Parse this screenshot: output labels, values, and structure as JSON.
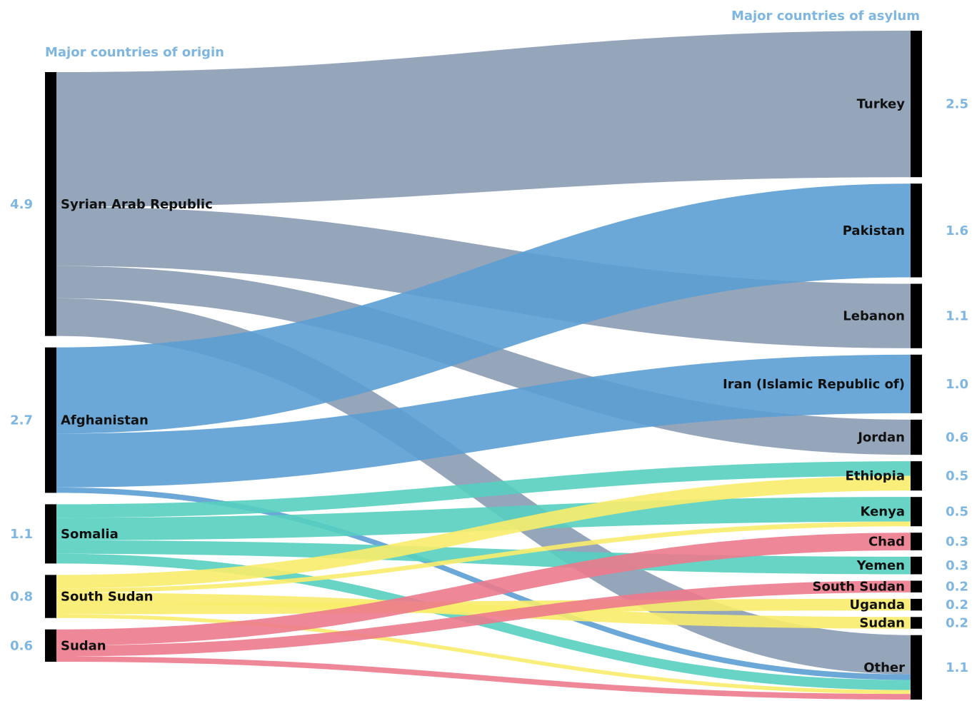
{
  "chart_data": {
    "type": "sankey",
    "left_header": "Major countries of origin",
    "right_header": "Major countries of asylum",
    "colors": {
      "Syrian Arab Republic": "#8a9bb3",
      "Afghanistan": "#5b9fd4",
      "Somalia": "#56cfc0",
      "South Sudan": "#f8ec6a",
      "Sudan": "#ec7a8c",
      "bar": "#000000",
      "header": "#7fb6e0"
    },
    "origins": [
      {
        "name": "Syrian Arab Republic",
        "value": 4.9,
        "value_label": "4.9"
      },
      {
        "name": "Afghanistan",
        "value": 2.7,
        "value_label": "2.7"
      },
      {
        "name": "Somalia",
        "value": 1.1,
        "value_label": "1.1"
      },
      {
        "name": "South Sudan",
        "value": 0.8,
        "value_label": "0.8"
      },
      {
        "name": "Sudan",
        "value": 0.6,
        "value_label": "0.6"
      }
    ],
    "asylums": [
      {
        "name": "Turkey",
        "value": 2.5,
        "value_label": "2.5"
      },
      {
        "name": "Pakistan",
        "value": 1.6,
        "value_label": "1.6"
      },
      {
        "name": "Lebanon",
        "value": 1.1,
        "value_label": "1.1"
      },
      {
        "name": "Iran (Islamic Republic of)",
        "value": 1.0,
        "value_label": "1.0"
      },
      {
        "name": "Jordan",
        "value": 0.6,
        "value_label": "0.6"
      },
      {
        "name": "Ethiopia",
        "value": 0.5,
        "value_label": "0.5"
      },
      {
        "name": "Kenya",
        "value": 0.5,
        "value_label": "0.5"
      },
      {
        "name": "Chad",
        "value": 0.3,
        "value_label": "0.3"
      },
      {
        "name": "Yemen",
        "value": 0.3,
        "value_label": "0.3"
      },
      {
        "name": "South Sudan",
        "value": 0.2,
        "value_label": "0.2"
      },
      {
        "name": "Uganda",
        "value": 0.2,
        "value_label": "0.2"
      },
      {
        "name": "Sudan",
        "value": 0.2,
        "value_label": "0.2"
      },
      {
        "name": "Other",
        "value": 1.1,
        "value_label": "1.1"
      }
    ],
    "flows": [
      {
        "from": "Syrian Arab Republic",
        "to": "Turkey",
        "value": 2.5
      },
      {
        "from": "Syrian Arab Republic",
        "to": "Lebanon",
        "value": 1.1
      },
      {
        "from": "Syrian Arab Republic",
        "to": "Jordan",
        "value": 0.6
      },
      {
        "from": "Syrian Arab Republic",
        "to": "Other",
        "value": 0.7
      },
      {
        "from": "Afghanistan",
        "to": "Pakistan",
        "value": 1.6
      },
      {
        "from": "Afghanistan",
        "to": "Iran (Islamic Republic of)",
        "value": 1.0
      },
      {
        "from": "Afghanistan",
        "to": "Other",
        "value": 0.1
      },
      {
        "from": "Somalia",
        "to": "Ethiopia",
        "value": 0.25
      },
      {
        "from": "Somalia",
        "to": "Kenya",
        "value": 0.42
      },
      {
        "from": "Somalia",
        "to": "Yemen",
        "value": 0.25
      },
      {
        "from": "Somalia",
        "to": "Other",
        "value": 0.18
      },
      {
        "from": "South Sudan",
        "to": "Ethiopia",
        "value": 0.25
      },
      {
        "from": "South Sudan",
        "to": "Kenya",
        "value": 0.08
      },
      {
        "from": "South Sudan",
        "to": "Sudan",
        "value": 0.2
      },
      {
        "from": "South Sudan",
        "to": "Uganda",
        "value": 0.2
      },
      {
        "from": "South Sudan",
        "to": "Other",
        "value": 0.07
      },
      {
        "from": "Sudan",
        "to": "Chad",
        "value": 0.3
      },
      {
        "from": "Sudan",
        "to": "South Sudan",
        "value": 0.2
      },
      {
        "from": "Sudan",
        "to": "Other",
        "value": 0.1
      }
    ]
  }
}
